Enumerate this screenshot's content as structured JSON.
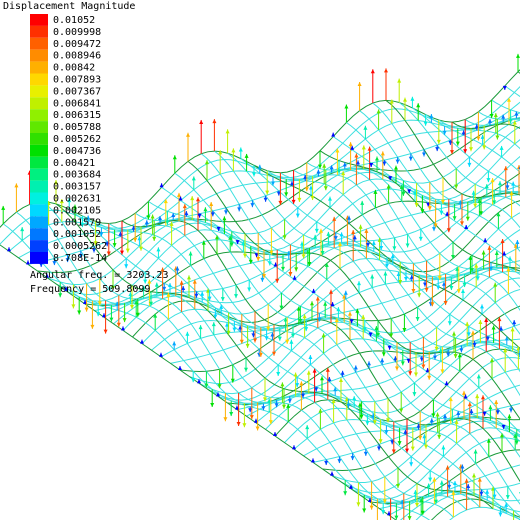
{
  "legend": {
    "title": "Displacement Magnitude",
    "entries": [
      {
        "label": "0.01052",
        "color": "#ff0000"
      },
      {
        "label": "0.009998",
        "color": "#ff3000"
      },
      {
        "label": "0.009472",
        "color": "#ff6000"
      },
      {
        "label": "0.008946",
        "color": "#ff8c00"
      },
      {
        "label": "0.00842",
        "color": "#ffb000"
      },
      {
        "label": "0.007893",
        "color": "#ffd800"
      },
      {
        "label": "0.007367",
        "color": "#e8f000"
      },
      {
        "label": "0.006841",
        "color": "#c0f000"
      },
      {
        "label": "0.006315",
        "color": "#90f000"
      },
      {
        "label": "0.005788",
        "color": "#60e800"
      },
      {
        "label": "0.005262",
        "color": "#30e000"
      },
      {
        "label": "0.004736",
        "color": "#00e000"
      },
      {
        "label": "0.00421",
        "color": "#00e840"
      },
      {
        "label": "0.003684",
        "color": "#00f080"
      },
      {
        "label": "0.003157",
        "color": "#00f0b0"
      },
      {
        "label": "0.002631",
        "color": "#00f0e0"
      },
      {
        "label": "0.002105",
        "color": "#00d8ff"
      },
      {
        "label": "0.001579",
        "color": "#00a8ff"
      },
      {
        "label": "0.001052",
        "color": "#0078ff"
      },
      {
        "label": "0.0005262",
        "color": "#0040ff"
      },
      {
        "label": "8.708E-14",
        "color": "#0000ff"
      }
    ]
  },
  "info": {
    "angular_freq": "Angular freq. = 3203.23",
    "frequency": "Frequency = 509.8099"
  }
}
